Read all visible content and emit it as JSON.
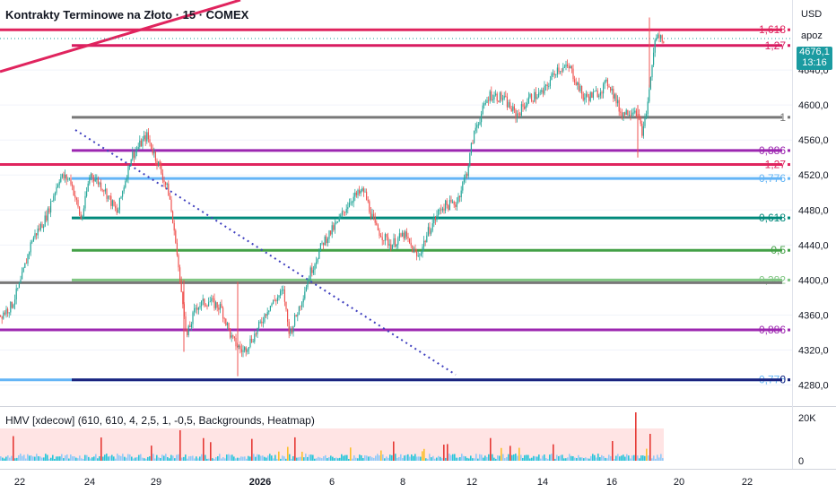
{
  "header": {
    "title": "Kontrakty Terminowe na Złoto · 15 · COMEX",
    "currency": "USD",
    "scale_mode": "apoz"
  },
  "last_price": {
    "value": "4676,1",
    "countdown": "13:16",
    "color": "#1b9ba1"
  },
  "indicator": {
    "label": "HMV [xdecow] (610, 610, 4, 2,5, 1, -0,5, Backgrounds, Heatmap)",
    "axis_ticks": [
      "20K",
      "0"
    ]
  },
  "chart_data": {
    "type": "candlestick",
    "y_ticks": [
      4280,
      4320,
      4360,
      4400,
      4440,
      4480,
      4520,
      4560,
      4600,
      4640
    ],
    "y_tick_labels": [
      "4280,0",
      "4320,0",
      "4360,0",
      "4400,0",
      "4440,0",
      "4480,0",
      "4520,0",
      "4560,0",
      "4600,0",
      "4640,0"
    ],
    "ylim": [
      4257,
      4720
    ],
    "x_tick_labels": [
      "22",
      "24",
      "29",
      "2026",
      "6",
      "8",
      "12",
      "14",
      "16",
      "20",
      "22"
    ],
    "price_path": [
      [
        0,
        4360
      ],
      [
        12,
        4370
      ],
      [
        22,
        4396
      ],
      [
        35,
        4446
      ],
      [
        50,
        4470
      ],
      [
        66,
        4518
      ],
      [
        78,
        4515
      ],
      [
        90,
        4468
      ],
      [
        100,
        4522
      ],
      [
        115,
        4505
      ],
      [
        130,
        4476
      ],
      [
        145,
        4540
      ],
      [
        163,
        4565
      ],
      [
        175,
        4535
      ],
      [
        188,
        4498
      ],
      [
        197,
        4425
      ],
      [
        205,
        4326
      ],
      [
        218,
        4370
      ],
      [
        232,
        4376
      ],
      [
        246,
        4368
      ],
      [
        258,
        4332
      ],
      [
        270,
        4318
      ],
      [
        285,
        4340
      ],
      [
        298,
        4368
      ],
      [
        315,
        4387
      ],
      [
        322,
        4338
      ],
      [
        332,
        4366
      ],
      [
        345,
        4408
      ],
      [
        360,
        4444
      ],
      [
        375,
        4464
      ],
      [
        390,
        4492
      ],
      [
        405,
        4502
      ],
      [
        418,
        4460
      ],
      [
        435,
        4440
      ],
      [
        450,
        4452
      ],
      [
        465,
        4425
      ],
      [
        478,
        4458
      ],
      [
        492,
        4484
      ],
      [
        508,
        4488
      ],
      [
        520,
        4524
      ],
      [
        528,
        4570
      ],
      [
        545,
        4612
      ],
      [
        560,
        4608
      ],
      [
        575,
        4588
      ],
      [
        590,
        4608
      ],
      [
        605,
        4614
      ],
      [
        620,
        4642
      ],
      [
        635,
        4642
      ],
      [
        650,
        4608
      ],
      [
        663,
        4612
      ],
      [
        678,
        4626
      ],
      [
        692,
        4590
      ],
      [
        708,
        4596
      ],
      [
        716,
        4566
      ],
      [
        722,
        4606
      ],
      [
        726,
        4684
      ],
      [
        732,
        4678
      ],
      [
        740,
        4676
      ]
    ],
    "fib_levels": [
      {
        "label": "1,618",
        "price": 4686,
        "color": "#e0245e",
        "start": 0
      },
      {
        "label": "1,27",
        "price": 4668,
        "color": "#d81b60",
        "start": 80
      },
      {
        "label": "1",
        "price": 4586,
        "color": "#787878",
        "start": 80
      },
      {
        "label": "0,886",
        "price": 4548,
        "color": "#9c27b0",
        "start": 80
      },
      {
        "label": "1,27",
        "price": 4532,
        "color": "#e0245e",
        "start": 0
      },
      {
        "label": "0,776",
        "price": 4516,
        "color": "#64b5f6",
        "start": 80
      },
      {
        "label": "0,618",
        "price": 4471,
        "color": "#00897b",
        "start": 80
      },
      {
        "label": "0,5",
        "price": 4434,
        "color": "#43a047",
        "start": 80
      },
      {
        "label": "0,382",
        "price": 4400,
        "color": "#81c784",
        "start": 80
      },
      {
        "label": "",
        "price": 4397,
        "color": "#787878",
        "start": 0
      },
      {
        "label": "0,886",
        "price": 4343,
        "color": "#9c27b0",
        "start": 0
      },
      {
        "label": "0,776",
        "price": 4286,
        "color": "#64b5f6",
        "start": 0
      },
      {
        "label": "0",
        "price": 4286,
        "color": "#1a237e",
        "start": 80
      }
    ],
    "trendline_solid": {
      "color": "#e0245e"
    },
    "trendline_dotted": {
      "color": "#3f3fbf"
    },
    "colors": {
      "up": "#26a69a",
      "down": "#ef5350"
    }
  }
}
